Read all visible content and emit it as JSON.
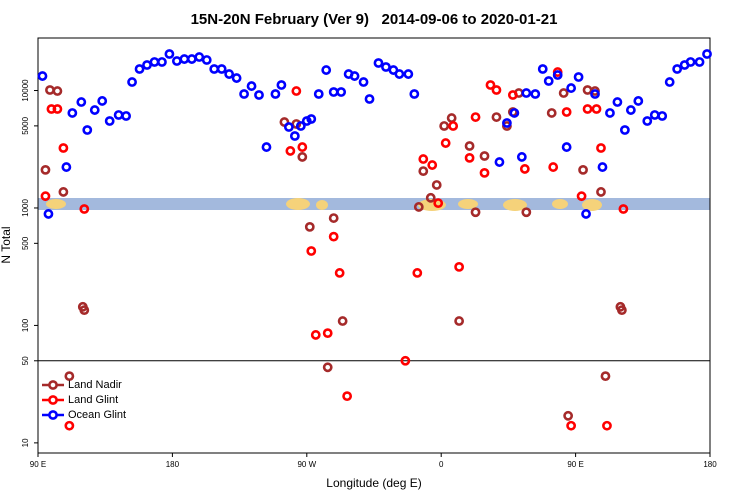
{
  "chart_data": {
    "type": "scatter",
    "title": "15N-20N February (Ver 9)   2014-09-06 to 2020-01-21",
    "x_label": "Longitude (deg E)",
    "y_label": "N Total",
    "xlim": [
      90,
      540
    ],
    "xticks": [
      {
        "value": 90,
        "label": "90 E"
      },
      {
        "value": 180,
        "label": "180"
      },
      {
        "value": 270,
        "label": "90 W"
      },
      {
        "value": 360,
        "label": "0"
      },
      {
        "value": 450,
        "label": "90 E"
      },
      {
        "value": 540,
        "label": "180"
      }
    ],
    "ylim": [
      8.2,
      28000
    ],
    "log_y": true,
    "yticks": [
      10,
      50,
      100,
      500,
      1000,
      5000,
      10000
    ],
    "hline": 50,
    "legend": "bottom-left",
    "series": [
      {
        "name": "Land Nadir",
        "color": "#a52a2a",
        "x": [
          95,
          98,
          103,
          107,
          111,
          120,
          121,
          255,
          263,
          267,
          272,
          284,
          288,
          294,
          345,
          348,
          353,
          357,
          362,
          367,
          372,
          379,
          383,
          389,
          397,
          404,
          408,
          412,
          417,
          434,
          442,
          445,
          455,
          458,
          463,
          467,
          470,
          480,
          481
        ],
        "values": [
          2110,
          10100,
          9900,
          1370,
          37,
          144,
          135,
          5390,
          5190,
          2720,
          690,
          44,
          820,
          109,
          1020,
          2060,
          1220,
          1570,
          4990,
          5830,
          109,
          3370,
          920,
          2770,
          5940,
          4990,
          6560,
          9520,
          920,
          6440,
          9520,
          17,
          2110,
          10100,
          9900,
          1370,
          37,
          144,
          135
        ]
      },
      {
        "name": "Land Glint",
        "color": "#ff0000",
        "x": [
          95,
          99,
          103,
          107,
          111,
          121,
          259,
          263,
          267,
          273,
          276,
          284,
          288,
          292,
          297,
          336,
          344,
          348,
          354,
          358,
          363,
          368,
          372,
          379,
          383,
          389,
          393,
          397,
          408,
          416,
          435,
          438,
          444,
          447,
          454,
          458,
          464,
          467,
          471,
          482
        ],
        "values": [
          1260,
          6960,
          6960,
          3240,
          14,
          980,
          3060,
          9900,
          3300,
          430,
          83,
          86,
          570,
          280,
          25,
          50,
          280,
          2610,
          2320,
          1100,
          3570,
          4990,
          315,
          2670,
          5940,
          1990,
          11140,
          10100,
          9160,
          2150,
          2230,
          14360,
          6560,
          14,
          1260,
          6960,
          6960,
          3240,
          14,
          980
        ]
      },
      {
        "name": "Ocean Glint",
        "color": "#0000ff",
        "x": [
          93,
          97,
          109,
          113,
          119,
          123,
          128,
          133,
          138,
          144,
          149,
          153,
          158,
          163,
          168,
          173,
          178,
          183,
          188,
          193,
          198,
          203,
          208,
          213,
          218,
          223,
          228,
          233,
          238,
          243,
          249,
          253,
          258,
          262,
          266,
          270,
          273,
          278,
          283,
          288,
          293,
          298,
          302,
          308,
          312,
          318,
          323,
          328,
          332,
          338,
          342,
          399,
          404,
          409,
          414,
          417,
          423,
          428,
          432,
          438,
          444,
          447,
          452,
          457,
          463,
          468,
          473,
          478,
          483,
          487,
          492,
          498,
          503,
          508,
          513,
          518,
          523,
          527,
          533,
          538
        ],
        "values": [
          13280,
          890,
          2230,
          6440,
          7980,
          4610,
          6820,
          8150,
          5500,
          6190,
          6070,
          11810,
          15250,
          16490,
          17500,
          17500,
          20460,
          17830,
          18530,
          18530,
          19280,
          18200,
          15250,
          15250,
          13810,
          12770,
          9340,
          10910,
          9160,
          3300,
          9340,
          11140,
          4890,
          4100,
          4990,
          5500,
          5720,
          9340,
          14940,
          9710,
          9710,
          13810,
          13280,
          11810,
          8470,
          17150,
          15860,
          14940,
          13810,
          13810,
          9340,
          2460,
          5290,
          6440,
          2720,
          9520,
          9340,
          15250,
          12050,
          13550,
          3300,
          10490,
          13030,
          890,
          9340,
          2230,
          6440,
          7980,
          4610,
          6820,
          8150,
          5500,
          6190,
          6070,
          11810,
          15250,
          16490,
          17500,
          17500,
          20460
        ]
      }
    ]
  }
}
